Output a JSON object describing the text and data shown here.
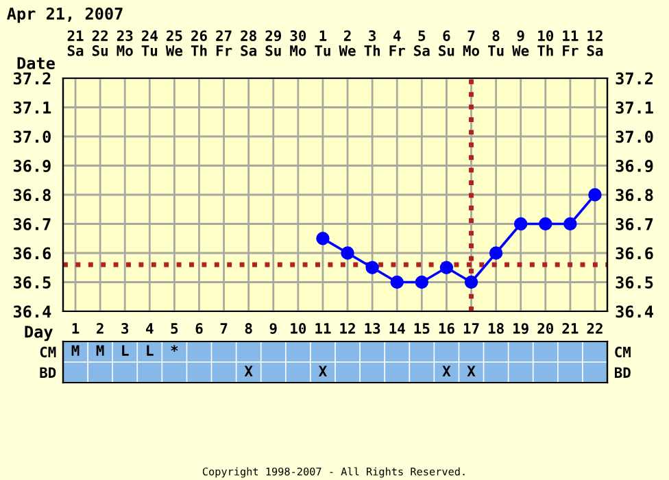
{
  "chart_data": [
    {
      "type": "line",
      "title": "Apr 21, 2007",
      "xlabel": "Day",
      "categories": [
        "1",
        "2",
        "3",
        "4",
        "5",
        "6",
        "7",
        "8",
        "9",
        "10",
        "11",
        "12",
        "13",
        "14",
        "15",
        "16",
        "17",
        "18",
        "19",
        "20",
        "21",
        "22"
      ],
      "ylim": [
        36.4,
        37.2
      ],
      "yticks": [
        {
          "value": 36.4,
          "label": "36.4"
        },
        {
          "value": 36.5,
          "label": "36.5"
        },
        {
          "value": 36.6,
          "label": "36.6"
        },
        {
          "value": 36.7,
          "label": "36.7"
        },
        {
          "value": 36.8,
          "label": "36.8"
        },
        {
          "value": 36.9,
          "label": "36.9"
        },
        {
          "value": 37.0,
          "label": "37.0"
        },
        {
          "value": 37.1,
          "label": "37.1"
        },
        {
          "value": 37.2,
          "label": "37.2"
        }
      ],
      "y2lim": [
        36.4,
        37.2
      ],
      "y2ticks": [
        {
          "value": 36.4,
          "label": "36.4"
        },
        {
          "value": 36.5,
          "label": "36.5"
        },
        {
          "value": 36.6,
          "label": "36.6"
        },
        {
          "value": 36.7,
          "label": "36.7"
        },
        {
          "value": 36.8,
          "label": "36.8"
        },
        {
          "value": 36.9,
          "label": "36.9"
        },
        {
          "value": 37.0,
          "label": "37.0"
        },
        {
          "value": 37.1,
          "label": "37.1"
        },
        {
          "value": 37.2,
          "label": "37.2"
        }
      ],
      "series": [
        {
          "color": "#0000ff",
          "values": [
            null,
            null,
            null,
            null,
            null,
            null,
            null,
            null,
            null,
            null,
            36.65,
            36.6,
            36.55,
            36.5,
            36.5,
            36.55,
            36.5,
            36.6,
            36.7,
            36.7,
            36.7,
            36.8
          ]
        }
      ],
      "marker": "circle",
      "line_style": "solid",
      "grid": true,
      "ref_lines": [
        {
          "axis": "x",
          "value": "17",
          "color": "#b22222",
          "line_style": "dotted"
        },
        {
          "axis": "y",
          "value": 36.56,
          "color": "#b22222",
          "line_style": "dotted"
        }
      ],
      "annotations": [
        "Copyright 1998-2007 - All Rights Reserved."
      ]
    },
    {
      "type": "heatmap",
      "categories": [
        "21\nSa",
        "22\nSu",
        "23\nMo",
        "24\nTu",
        "25\nWe",
        "26\nTh",
        "27\nFr",
        "28\nSa",
        "29\nSu",
        "30\nMo",
        "1\nTu",
        "2\nWe",
        "3\nTh",
        "4\nFr",
        "5\nSa",
        "6\nSu",
        "7\nMo",
        "8\nTu",
        "9\nWe",
        "10\nTh",
        "11\nFr",
        "12\nSa"
      ],
      "y_categories": [
        "Date"
      ],
      "cells": [
        [
          null,
          null,
          null,
          null,
          null,
          null,
          null,
          null,
          null,
          null,
          null,
          null,
          null,
          null,
          null,
          null,
          null,
          null,
          null,
          null,
          null,
          null
        ]
      ]
    },
    {
      "type": "heatmap",
      "categories": [
        "1",
        "2",
        "3",
        "4",
        "5",
        "6",
        "7",
        "8",
        "9",
        "10",
        "11",
        "12",
        "13",
        "14",
        "15",
        "16",
        "17",
        "18",
        "19",
        "20",
        "21",
        "22"
      ],
      "y_categories": [
        "CM",
        "BD"
      ],
      "y2_categories": [
        "CM",
        "BD"
      ],
      "tick_labels": "y",
      "grid": true,
      "cells": [
        [
          null,
          null,
          null,
          null,
          null,
          null,
          null,
          null,
          null,
          null,
          null,
          null,
          null,
          null,
          null,
          null,
          null,
          null,
          null,
          null,
          null,
          null
        ],
        [
          null,
          null,
          null,
          null,
          null,
          null,
          null,
          null,
          null,
          null,
          null,
          null,
          null,
          null,
          null,
          null,
          null,
          null,
          null,
          null,
          null,
          null
        ]
      ],
      "cell_labels": [
        [
          "M",
          "M",
          "L",
          "L",
          "*",
          null,
          null,
          null,
          null,
          null,
          null,
          null,
          null,
          null,
          null,
          null,
          null,
          null,
          null,
          null,
          null,
          null
        ],
        [
          null,
          null,
          null,
          null,
          null,
          null,
          null,
          "X",
          null,
          null,
          "X",
          null,
          null,
          null,
          null,
          "X",
          "X",
          null,
          null,
          null,
          null,
          null
        ]
      ]
    }
  ]
}
